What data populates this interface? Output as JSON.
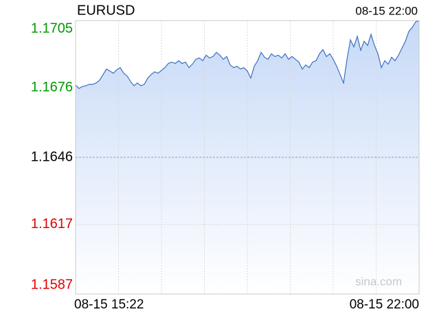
{
  "chart_data": {
    "type": "area-line",
    "title": "EURUSD",
    "time": "08-15 22:00",
    "watermark": "sina.com",
    "line_color": "#3a6fc0",
    "fill_color": "#c6d9f7",
    "ylim": [
      1.1587,
      1.1705
    ],
    "yticks": [
      1.1587,
      1.1617,
      1.1646,
      1.1676,
      1.1705
    ],
    "ytick_colors": [
      "#e00000",
      "#e00000",
      "#000000",
      "#009900",
      "#009900"
    ],
    "xgrid": 8,
    "grid": true,
    "categories": [
      "08-15 15:22",
      null,
      null,
      null,
      null,
      null,
      null,
      null,
      null,
      null,
      null,
      null,
      null,
      null,
      null,
      null,
      null,
      null,
      null,
      null,
      null,
      null,
      null,
      null,
      null,
      null,
      null,
      null,
      null,
      null,
      null,
      null,
      null,
      null,
      null,
      null,
      null,
      null,
      null,
      null,
      null,
      null,
      null,
      null,
      null,
      null,
      null,
      null,
      null,
      null,
      null,
      null,
      null,
      null,
      null,
      null,
      null,
      null,
      null,
      null,
      null,
      null,
      null,
      null,
      null,
      null,
      null,
      null,
      null,
      null,
      null,
      null,
      null,
      null,
      null,
      null,
      null,
      null,
      null,
      null,
      null,
      null,
      null,
      null,
      null,
      null,
      null,
      null,
      null,
      null,
      null,
      null,
      null,
      null,
      null,
      null,
      null,
      null,
      null,
      null,
      "08-15 22:00"
    ],
    "values": [
      1.16772,
      1.16757,
      1.16766,
      1.16769,
      1.16775,
      1.16775,
      1.16781,
      1.16793,
      1.16817,
      1.16841,
      1.16832,
      1.16823,
      1.16838,
      1.16847,
      1.16823,
      1.16811,
      1.16787,
      1.16769,
      1.16781,
      1.16769,
      1.16775,
      1.16802,
      1.16817,
      1.16829,
      1.16823,
      1.16835,
      1.16847,
      1.16865,
      1.16871,
      1.16865,
      1.16877,
      1.16865,
      1.16871,
      1.16847,
      1.16862,
      1.16883,
      1.16889,
      1.16877,
      1.16901,
      1.16889,
      1.16895,
      1.16913,
      1.16901,
      1.16883,
      1.16895,
      1.16859,
      1.16847,
      1.16853,
      1.16841,
      1.16847,
      1.16832,
      1.16802,
      1.16853,
      1.16877,
      1.16913,
      1.16892,
      1.16883,
      1.16907,
      1.16895,
      1.16901,
      1.16889,
      1.16907,
      1.16883,
      1.16895,
      1.16883,
      1.16871,
      1.16841,
      1.16859,
      1.16847,
      1.16871,
      1.16877,
      1.16907,
      1.16925,
      1.16895,
      1.16907,
      1.16883,
      1.16853,
      1.16817,
      1.16781,
      1.16883,
      1.16967,
      1.16937,
      1.16982,
      1.16922,
      1.16961,
      1.16943,
      1.16991,
      1.16943,
      1.16907,
      1.16847,
      1.16877,
      1.16862,
      1.16892,
      1.16877,
      1.16901,
      1.16931,
      1.16961,
      1.17003,
      1.17021,
      1.17045,
      1.1705
    ]
  }
}
